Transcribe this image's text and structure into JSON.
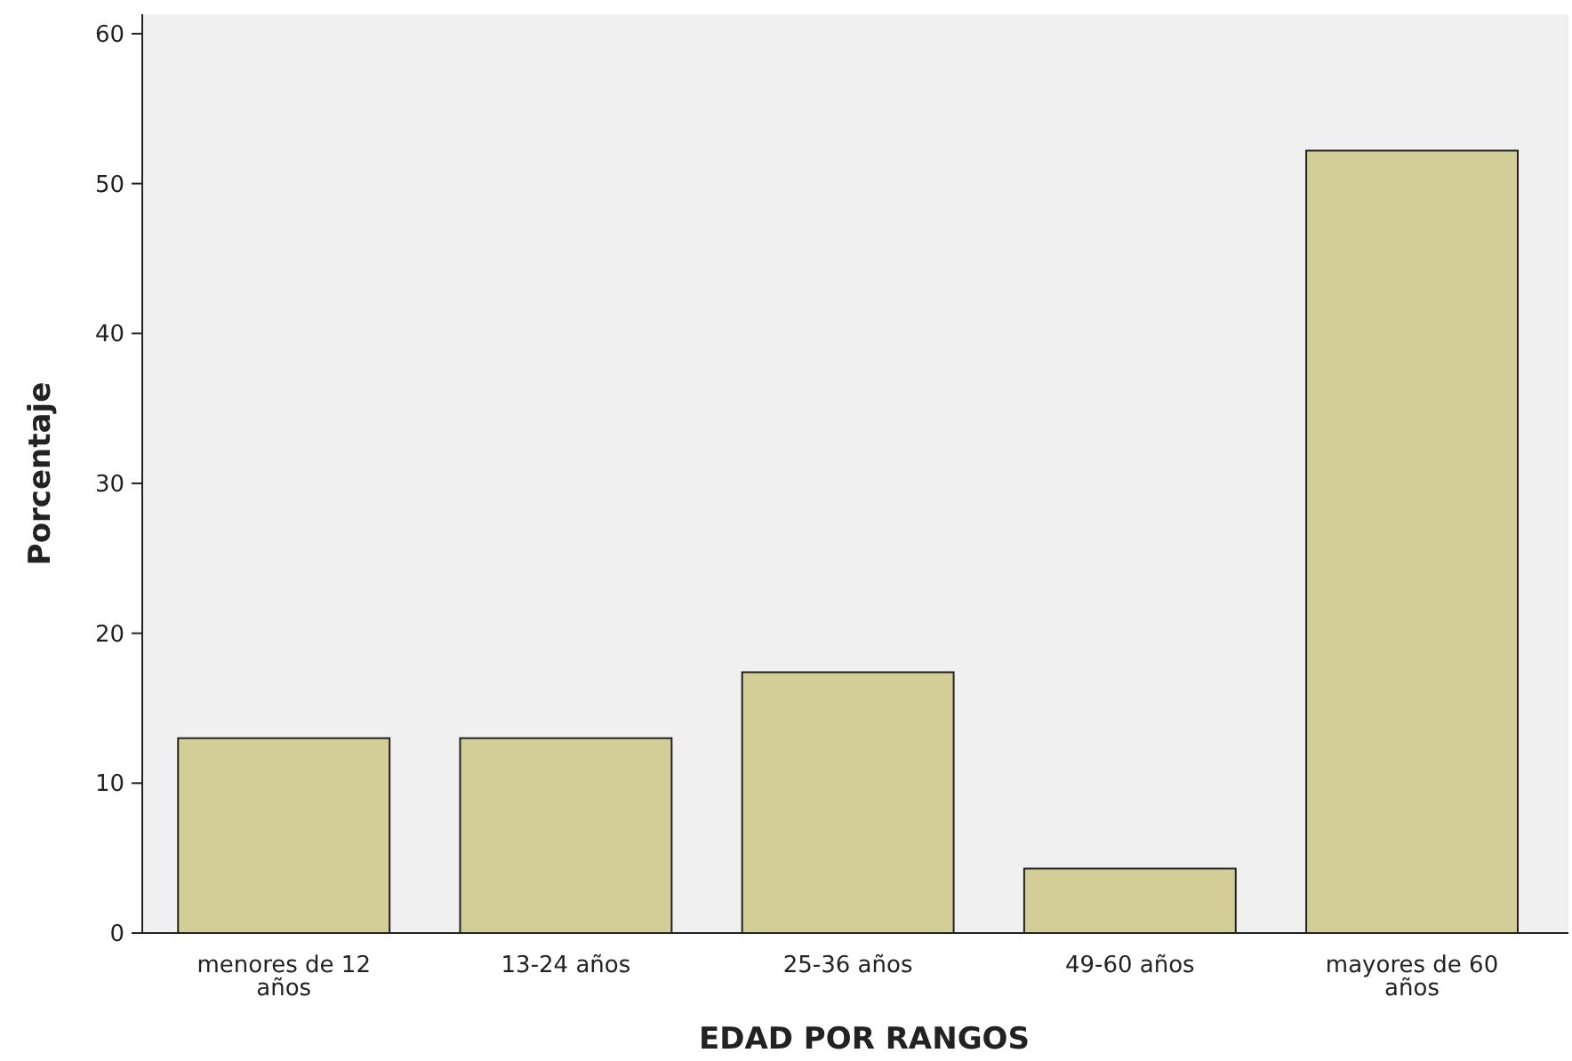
{
  "chart_data": {
    "type": "bar",
    "xlabel": "EDAD POR RANGOS",
    "ylabel": "Porcentaje",
    "categories": [
      "menores de 12 años",
      "13-24 años",
      "25-36 años",
      "49-60 años",
      "mayores de 60 años"
    ],
    "values": [
      13.0,
      13.0,
      17.4,
      4.3,
      52.2
    ],
    "color": "#d3ce97",
    "ylim": [
      0,
      61.3
    ],
    "yticks": [
      0,
      10,
      20,
      30,
      40,
      50,
      60
    ],
    "grid": false
  }
}
